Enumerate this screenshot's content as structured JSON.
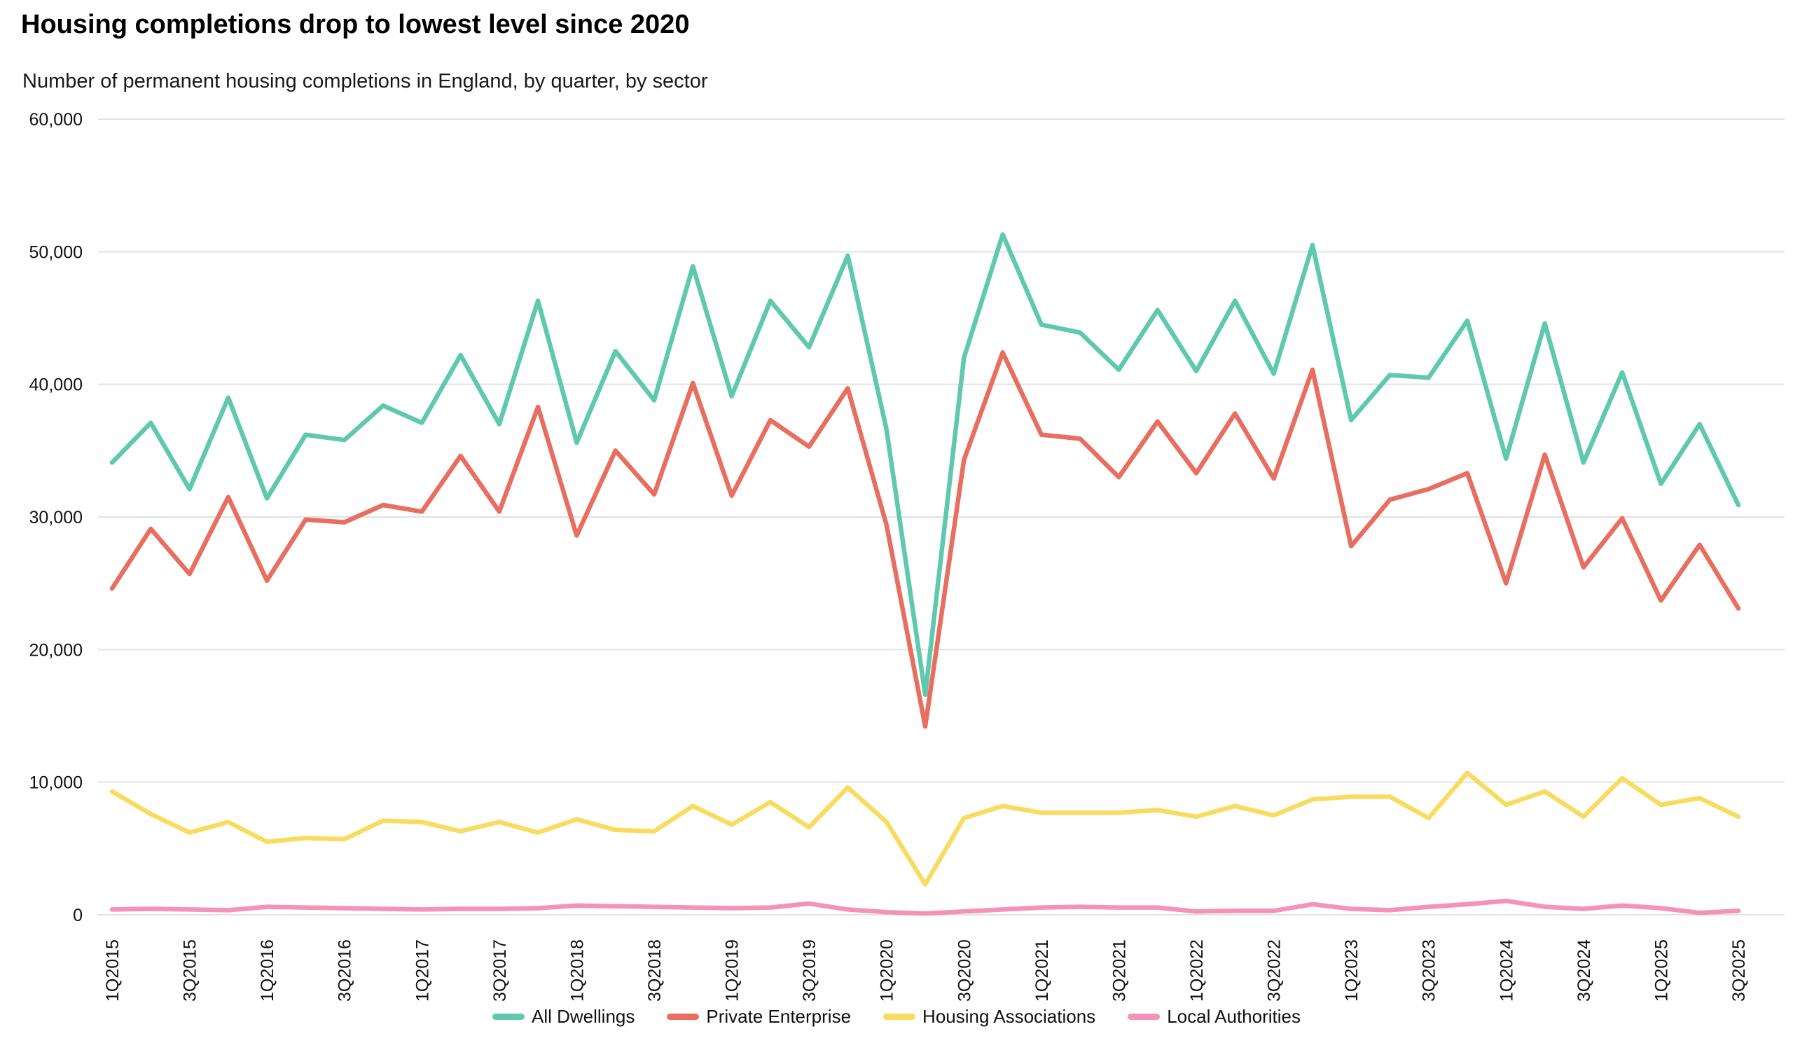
{
  "header": {
    "title": "Housing completions drop to lowest level since 2020",
    "subtitle": "Number of permanent housing completions in England, by quarter, by sector"
  },
  "colors": {
    "all_dwellings": "#5ec9ad",
    "private_enterprise": "#e86e60",
    "housing_associations": "#f8dc60",
    "local_authorities": "#f393b7",
    "gridline": "#e2e2e2",
    "axis_text": "#111111",
    "background": "#ffffff"
  },
  "chart_data": {
    "type": "line",
    "title": "Housing completions drop to lowest level since 2020",
    "subtitle": "Number of permanent housing completions in England, by quarter, by sector",
    "xlabel": "",
    "ylabel": "",
    "ylim": [
      0,
      60000
    ],
    "grid": "horizontal",
    "legend_position": "bottom",
    "y_ticks": [
      {
        "value": 0,
        "label": "0"
      },
      {
        "value": 10000,
        "label": "10,000"
      },
      {
        "value": 20000,
        "label": "20,000"
      },
      {
        "value": 30000,
        "label": "30,000"
      },
      {
        "value": 40000,
        "label": "40,000"
      },
      {
        "value": 50000,
        "label": "50,000"
      },
      {
        "value": 60000,
        "label": "60,000"
      }
    ],
    "x_tick_step": 2,
    "categories": [
      "1Q2015",
      "2Q2015",
      "3Q2015",
      "4Q2015",
      "1Q2016",
      "2Q2016",
      "3Q2016",
      "4Q2016",
      "1Q2017",
      "2Q2017",
      "3Q2017",
      "4Q2017",
      "1Q2018",
      "2Q2018",
      "3Q2018",
      "4Q2018",
      "1Q2019",
      "2Q2019",
      "3Q2019",
      "4Q2019",
      "1Q2020",
      "2Q2020",
      "3Q2020",
      "4Q2020",
      "1Q2021",
      "2Q2021",
      "3Q2021",
      "4Q2021",
      "1Q2022",
      "2Q2022",
      "3Q2022",
      "4Q2022",
      "1Q2023",
      "2Q2023",
      "3Q2023",
      "4Q2023",
      "1Q2024",
      "2Q2024",
      "3Q2024",
      "4Q2024",
      "1Q2025",
      "2Q2025",
      "3Q2025"
    ],
    "series": [
      {
        "name": "All Dwellings",
        "color": "#5ec9ad",
        "values": [
          34100,
          37100,
          32100,
          39000,
          31400,
          36200,
          35800,
          38400,
          37100,
          42200,
          37000,
          46300,
          35600,
          42500,
          38800,
          48900,
          39100,
          46300,
          42800,
          49700,
          36600,
          16600,
          42000,
          51300,
          44500,
          43900,
          41100,
          45600,
          41000,
          46300,
          40800,
          50500,
          37300,
          40700,
          40500,
          44800,
          34400,
          44600,
          34100,
          40900,
          32500,
          37000,
          30900
        ]
      },
      {
        "name": "Private Enterprise",
        "color": "#e86e60",
        "values": [
          24600,
          29100,
          25700,
          31500,
          25200,
          29800,
          29600,
          30900,
          30400,
          34600,
          30400,
          38300,
          28600,
          35000,
          31700,
          40100,
          31600,
          37300,
          35300,
          39700,
          29400,
          14200,
          34300,
          42400,
          36200,
          35900,
          33000,
          37200,
          33300,
          37800,
          32900,
          41100,
          27800,
          31300,
          32100,
          33300,
          25000,
          34700,
          26200,
          29900,
          23700,
          27900,
          23100
        ]
      },
      {
        "name": "Housing Associations",
        "color": "#f8dc60",
        "values": [
          9300,
          7600,
          6200,
          7000,
          5500,
          5800,
          5700,
          7100,
          7000,
          6300,
          7000,
          6200,
          7200,
          6400,
          6300,
          8200,
          6800,
          8500,
          6600,
          9600,
          7000,
          2300,
          7300,
          8200,
          7700,
          7700,
          7700,
          7900,
          7400,
          8200,
          7500,
          8700,
          8900,
          8900,
          7300,
          10700,
          8300,
          9300,
          7400,
          10300,
          8300,
          8800,
          7400
        ]
      },
      {
        "name": "Local Authorities",
        "color": "#f393b7",
        "values": [
          400,
          450,
          400,
          350,
          600,
          550,
          500,
          450,
          400,
          450,
          450,
          500,
          700,
          650,
          600,
          550,
          500,
          550,
          850,
          400,
          200,
          100,
          250,
          400,
          550,
          600,
          550,
          550,
          250,
          300,
          300,
          800,
          450,
          350,
          600,
          800,
          1050,
          600,
          450,
          700,
          500,
          150,
          300
        ]
      }
    ]
  },
  "legend": {
    "items": [
      {
        "label": "All Dwellings",
        "color": "#5ec9ad"
      },
      {
        "label": "Private Enterprise",
        "color": "#e86e60"
      },
      {
        "label": "Housing Associations",
        "color": "#f8dc60"
      },
      {
        "label": "Local Authorities",
        "color": "#f393b7"
      }
    ]
  }
}
